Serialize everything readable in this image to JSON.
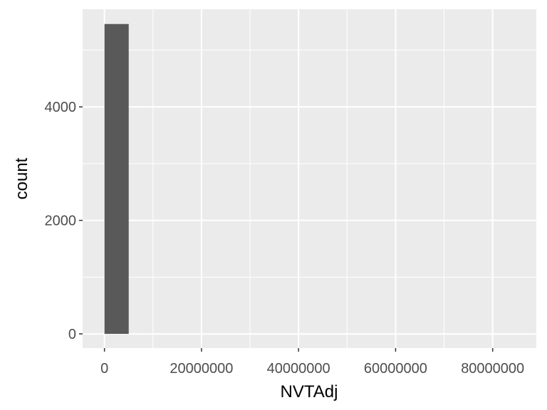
{
  "chart_data": {
    "type": "bar",
    "title": "",
    "xlabel": "NVTAdj",
    "ylabel": "count",
    "xlim": [
      -4500000,
      89000000
    ],
    "ylim": [
      -250,
      5720
    ],
    "x_ticks": [
      0,
      20000000,
      40000000,
      60000000,
      80000000
    ],
    "x_tick_labels": [
      "0",
      "20000000",
      "40000000",
      "60000000",
      "80000000"
    ],
    "x_minor_ticks": [
      10000000,
      30000000,
      50000000,
      70000000
    ],
    "y_ticks": [
      0,
      2000,
      4000
    ],
    "y_tick_labels": [
      "0",
      "2000",
      "4000"
    ],
    "y_minor_ticks": [
      1000,
      3000,
      5000
    ],
    "bins": [
      {
        "x0": 0,
        "x1": 5000000,
        "count": 5460
      }
    ],
    "grid": true,
    "legend": "none",
    "colors": {
      "panel_background": "#ebebeb",
      "grid_line": "#ffffff",
      "bar_fill": "#595959",
      "tick_mark": "#333333",
      "tick_text": "#4d4d4d",
      "axis_title": "#000000"
    }
  }
}
